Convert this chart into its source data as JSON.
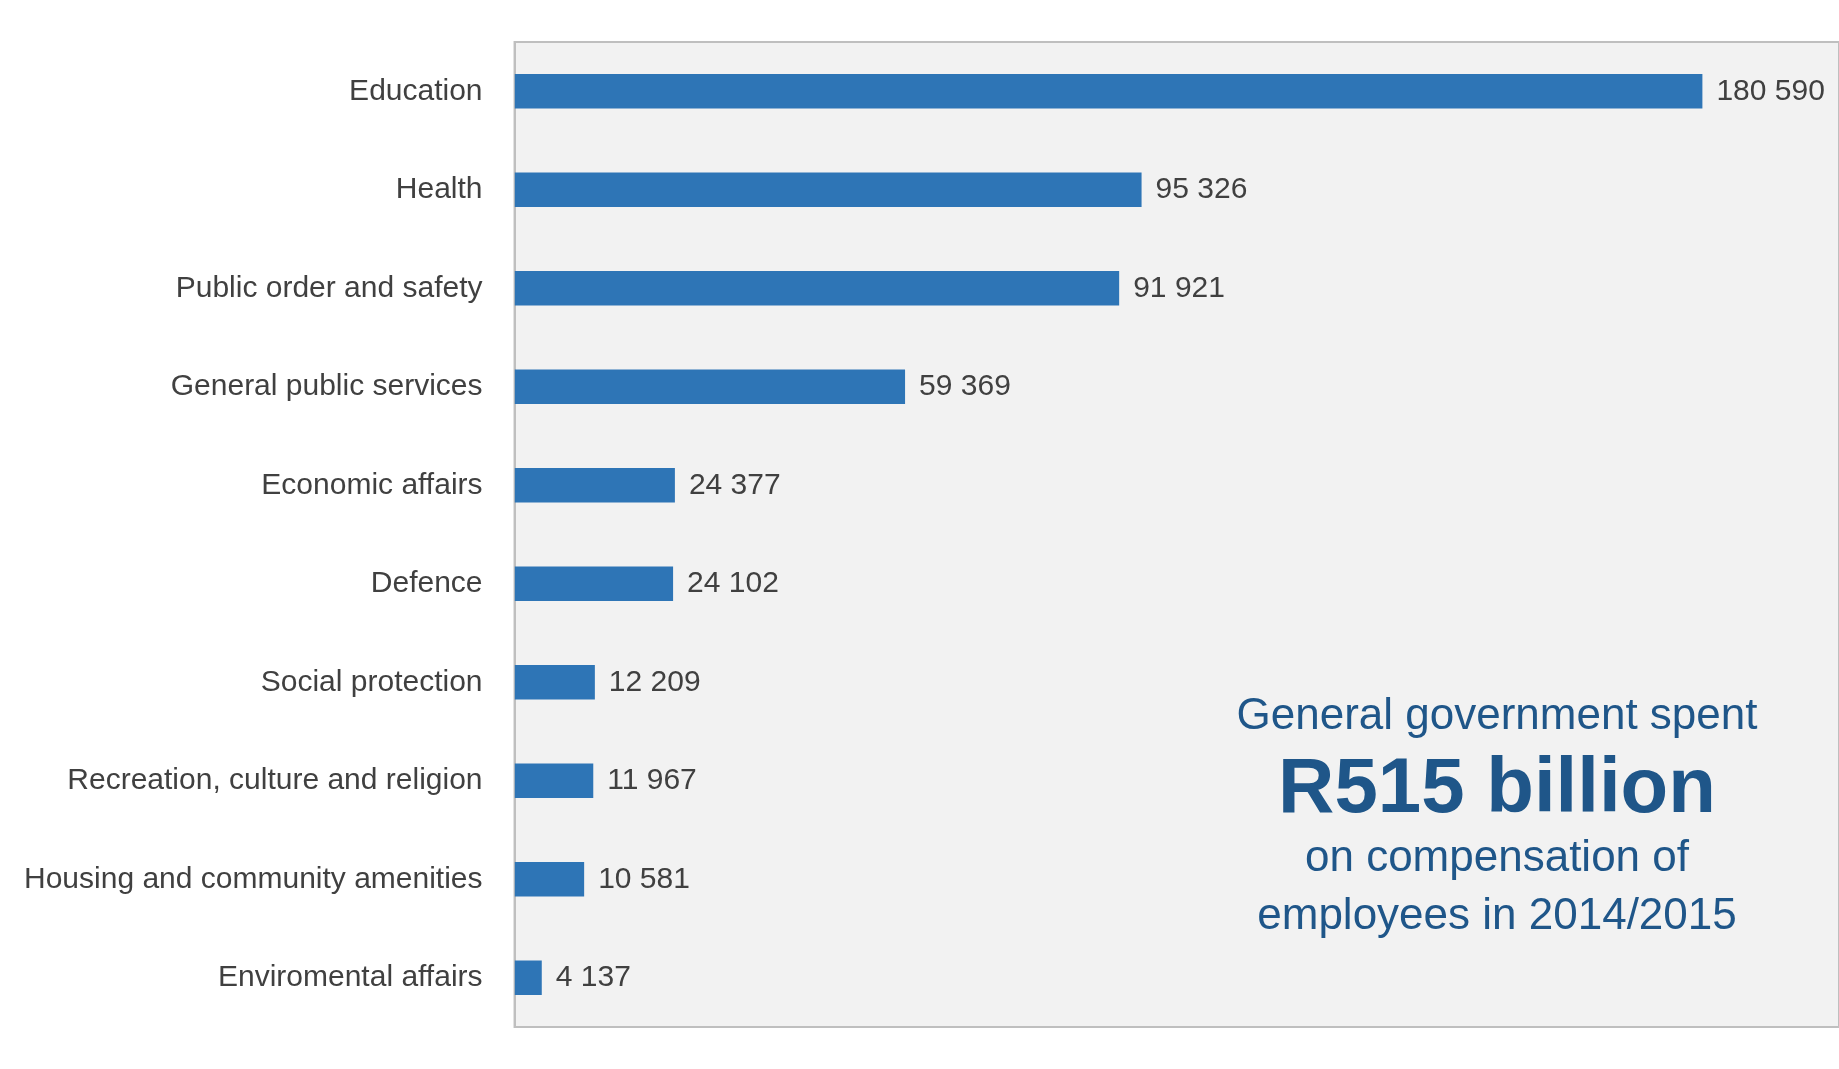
{
  "chart_data": {
    "type": "bar",
    "orientation": "horizontal",
    "categories": [
      "Education",
      "Health",
      "Public order and safety",
      "General public services",
      "Economic affairs",
      "Defence",
      "Social protection",
      "Recreation, culture and religion",
      "Housing and community amenities",
      "Enviromental affairs"
    ],
    "values": [
      180590,
      95326,
      91921,
      59369,
      24377,
      24102,
      12209,
      11967,
      10581,
      4137
    ],
    "value_labels": [
      "180 590",
      "95 326",
      "91 921",
      "59 369",
      "24 377",
      "24 102",
      "12 209",
      "11 967",
      "10 581",
      "4 137"
    ],
    "color": "#2e75b6",
    "annotations": [
      "General government spent",
      "R515 billion",
      "on compensation of",
      "employees in 2014/2015"
    ],
    "legend": false,
    "tick_labels": "y"
  }
}
